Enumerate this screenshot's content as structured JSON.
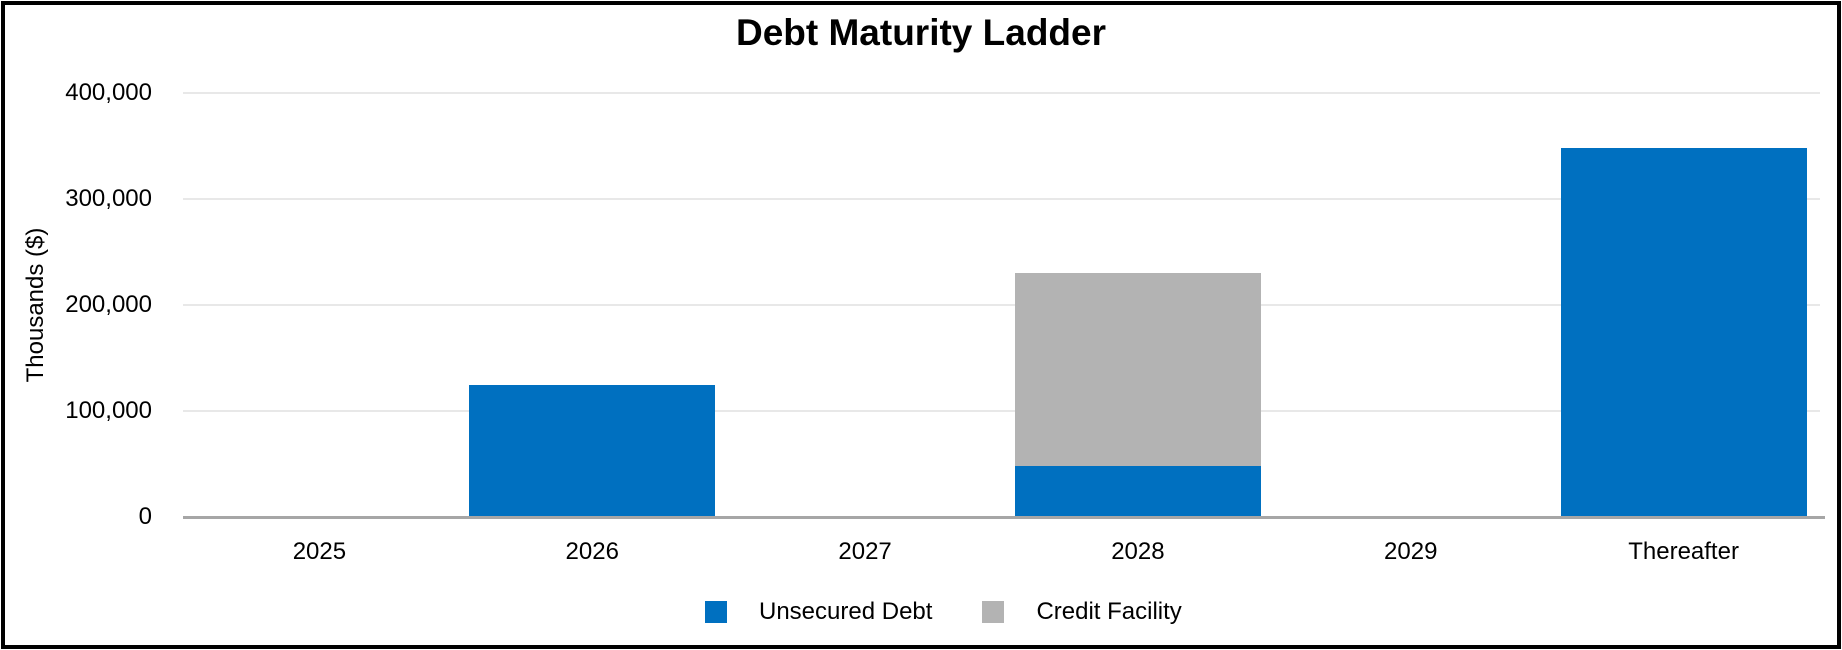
{
  "chart": {
    "title": "Debt Maturity Ladder"
  },
  "chart_data": {
    "type": "bar",
    "stacked": true,
    "title": "Debt Maturity Ladder",
    "xlabel": "",
    "ylabel": "Thousands ($)",
    "categories": [
      "2025",
      "2026",
      "2027",
      "2028",
      "2029",
      "Thereafter"
    ],
    "series": [
      {
        "name": "Unsecured Debt",
        "color": "#0070C0",
        "values": [
          0,
          125000,
          0,
          48000,
          0,
          348000
        ]
      },
      {
        "name": "Credit Facility",
        "color": "#B3B3B3",
        "values": [
          0,
          0,
          0,
          182000,
          0,
          0
        ]
      }
    ],
    "ylim": [
      0,
      400000
    ],
    "ytick_values": [
      0,
      100000,
      200000,
      300000,
      400000
    ],
    "ytick_labels": [
      "0",
      "100,000",
      "200,000",
      "300,000",
      "400,000"
    ],
    "grid": true,
    "legend_position": "bottom",
    "colors": {
      "gridline": "#e8e8e8",
      "axis_line": "#a6a6a6",
      "frame": "#000000",
      "text": "#000000"
    }
  }
}
